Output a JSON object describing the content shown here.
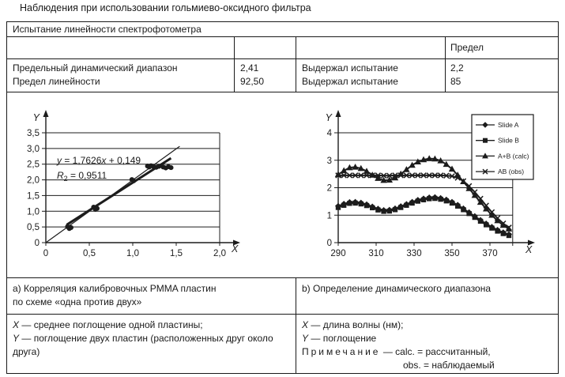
{
  "document_title": "Наблюдения при использовании гольмиево-оксидного фильтра",
  "ink_color": "#1c1c1c",
  "table": {
    "header": "Испытание линейности спектрофотометра",
    "limit_column_header": "Предел",
    "rows": [
      {
        "parameter": "Предельный динамический диапазон",
        "value": "2,41",
        "result": "Выдержал испытание",
        "limit": "2,2"
      },
      {
        "parameter": "Предел линейности",
        "value": "92,50",
        "result": "Выдержал испытание",
        "limit": "85"
      }
    ]
  },
  "captions": {
    "a": "a) Корреляция калибровочных PMMA пластин\nпо схеме «одна против двух»",
    "b": "b) Определение динамического диапазона"
  },
  "axis_notes": {
    "left": {
      "x_var": "X",
      "x_desc": "— среднее поглощение одной пластины;",
      "y_var": "Y",
      "y_desc": "— поглощение двух пластин (расположенных друг около друга)"
    },
    "right": {
      "x_var": "X",
      "x_desc": "— длина волны (нм);",
      "y_var": "Y",
      "y_desc": "— поглощение",
      "note_label": "Примечание",
      "note_calc": "— calc. = рассчитанный,",
      "note_obs": "obs. = наблюдаемый"
    }
  },
  "chart_data": [
    {
      "type": "scatter",
      "name": "calibration-correlation",
      "xlabel": "X",
      "ylabel": "Y",
      "xlim": [
        0,
        2.0
      ],
      "ylim": [
        0,
        3.5
      ],
      "grid": "horizontal",
      "xticks": [
        {
          "v": 0,
          "t": "0"
        },
        {
          "v": 0.5,
          "t": "0,5"
        },
        {
          "v": 1.0,
          "t": "1,0"
        },
        {
          "v": 1.5,
          "t": "1,5"
        },
        {
          "v": 2.0,
          "t": "2,0"
        }
      ],
      "yticks": [
        {
          "v": 0,
          "t": "0"
        },
        {
          "v": 0.5,
          "t": "0,5"
        },
        {
          "v": 1.0,
          "t": "1,0"
        },
        {
          "v": 1.5,
          "t": "1,5"
        },
        {
          "v": 2.0,
          "t": "2,0"
        },
        {
          "v": 2.5,
          "t": "2,5"
        },
        {
          "v": 3.0,
          "t": "3,0"
        },
        {
          "v": 3.5,
          "t": "3,5"
        }
      ],
      "points": [
        [
          0.25,
          0.51
        ],
        [
          0.27,
          0.45
        ],
        [
          0.29,
          0.48
        ],
        [
          0.55,
          1.13
        ],
        [
          0.57,
          1.06
        ],
        [
          0.59,
          1.09
        ],
        [
          0.99,
          2.01
        ],
        [
          1.01,
          1.97
        ],
        [
          1.17,
          2.44
        ],
        [
          1.19,
          2.41
        ],
        [
          1.21,
          2.45
        ],
        [
          1.24,
          2.42
        ],
        [
          1.27,
          2.4
        ],
        [
          1.3,
          2.43
        ],
        [
          1.35,
          2.41
        ],
        [
          1.38,
          2.38
        ],
        [
          1.41,
          2.42
        ],
        [
          1.44,
          2.39
        ]
      ],
      "fit_line": {
        "x1": 0.24,
        "y1": 0.57,
        "x2": 1.44,
        "y2": 2.69
      },
      "reference_line": {
        "x1": 0,
        "y1": 0,
        "x2": 1.54,
        "y2": 3.07
      },
      "equation": {
        "y_var": "y",
        "mid": " = 1,7626",
        "x_var": "x",
        "tail": " + 0,149"
      },
      "r_label": {
        "base": "R",
        "sub": "2",
        "rest": " = 0,9511"
      }
    },
    {
      "type": "line",
      "name": "dynamic-range",
      "xlabel": "X",
      "ylabel": "Y",
      "xlim": [
        290,
        382
      ],
      "ylim": [
        0,
        4
      ],
      "grid": "horizontal",
      "legend_position": "top-right",
      "xticks": [
        {
          "v": 290,
          "t": "290"
        },
        {
          "v": 310,
          "t": "310"
        },
        {
          "v": 330,
          "t": "330"
        },
        {
          "v": 350,
          "t": "350"
        },
        {
          "v": 370,
          "t": "370"
        }
      ],
      "yticks": [
        {
          "v": 0,
          "t": "0"
        },
        {
          "v": 1,
          "t": "1"
        },
        {
          "v": 2,
          "t": "2"
        },
        {
          "v": 3,
          "t": "3"
        },
        {
          "v": 4,
          "t": "4"
        }
      ],
      "x": [
        290,
        293,
        296,
        299,
        302,
        305,
        308,
        311,
        314,
        317,
        320,
        323,
        326,
        329,
        332,
        335,
        338,
        341,
        344,
        347,
        350,
        353,
        356,
        359,
        362,
        365,
        368,
        371,
        374,
        377,
        380
      ],
      "series": [
        {
          "name": "Slide A",
          "marker": "diamond",
          "values": [
            1.33,
            1.41,
            1.47,
            1.48,
            1.45,
            1.39,
            1.31,
            1.23,
            1.18,
            1.19,
            1.24,
            1.32,
            1.4,
            1.48,
            1.55,
            1.6,
            1.64,
            1.65,
            1.62,
            1.56,
            1.48,
            1.37,
            1.24,
            1.1,
            0.96,
            0.82,
            0.69,
            0.57,
            0.46,
            0.37,
            0.3
          ]
        },
        {
          "name": "Slide B",
          "marker": "square",
          "values": [
            1.28,
            1.36,
            1.43,
            1.44,
            1.41,
            1.35,
            1.27,
            1.19,
            1.14,
            1.15,
            1.2,
            1.28,
            1.36,
            1.44,
            1.51,
            1.56,
            1.6,
            1.61,
            1.58,
            1.52,
            1.44,
            1.33,
            1.2,
            1.06,
            0.92,
            0.78,
            0.65,
            0.53,
            0.42,
            0.33,
            0.26
          ]
        },
        {
          "name": "A+B (calc)",
          "marker": "triangle",
          "values": [
            2.48,
            2.62,
            2.73,
            2.75,
            2.7,
            2.6,
            2.46,
            2.34,
            2.27,
            2.28,
            2.36,
            2.5,
            2.66,
            2.82,
            2.94,
            3.02,
            3.06,
            3.05,
            2.98,
            2.85,
            2.68,
            2.46,
            2.22,
            1.97,
            1.72,
            1.47,
            1.23,
            1.0,
            0.8,
            0.63,
            0.5
          ]
        },
        {
          "name": "AB (obs)",
          "marker": "x",
          "values": [
            2.45,
            2.45,
            2.45,
            2.45,
            2.45,
            2.45,
            2.45,
            2.45,
            2.44,
            2.44,
            2.45,
            2.45,
            2.45,
            2.45,
            2.45,
            2.45,
            2.45,
            2.45,
            2.45,
            2.44,
            2.42,
            2.36,
            2.24,
            2.06,
            1.84,
            1.6,
            1.35,
            1.11,
            0.89,
            0.7,
            0.55
          ]
        }
      ]
    }
  ]
}
